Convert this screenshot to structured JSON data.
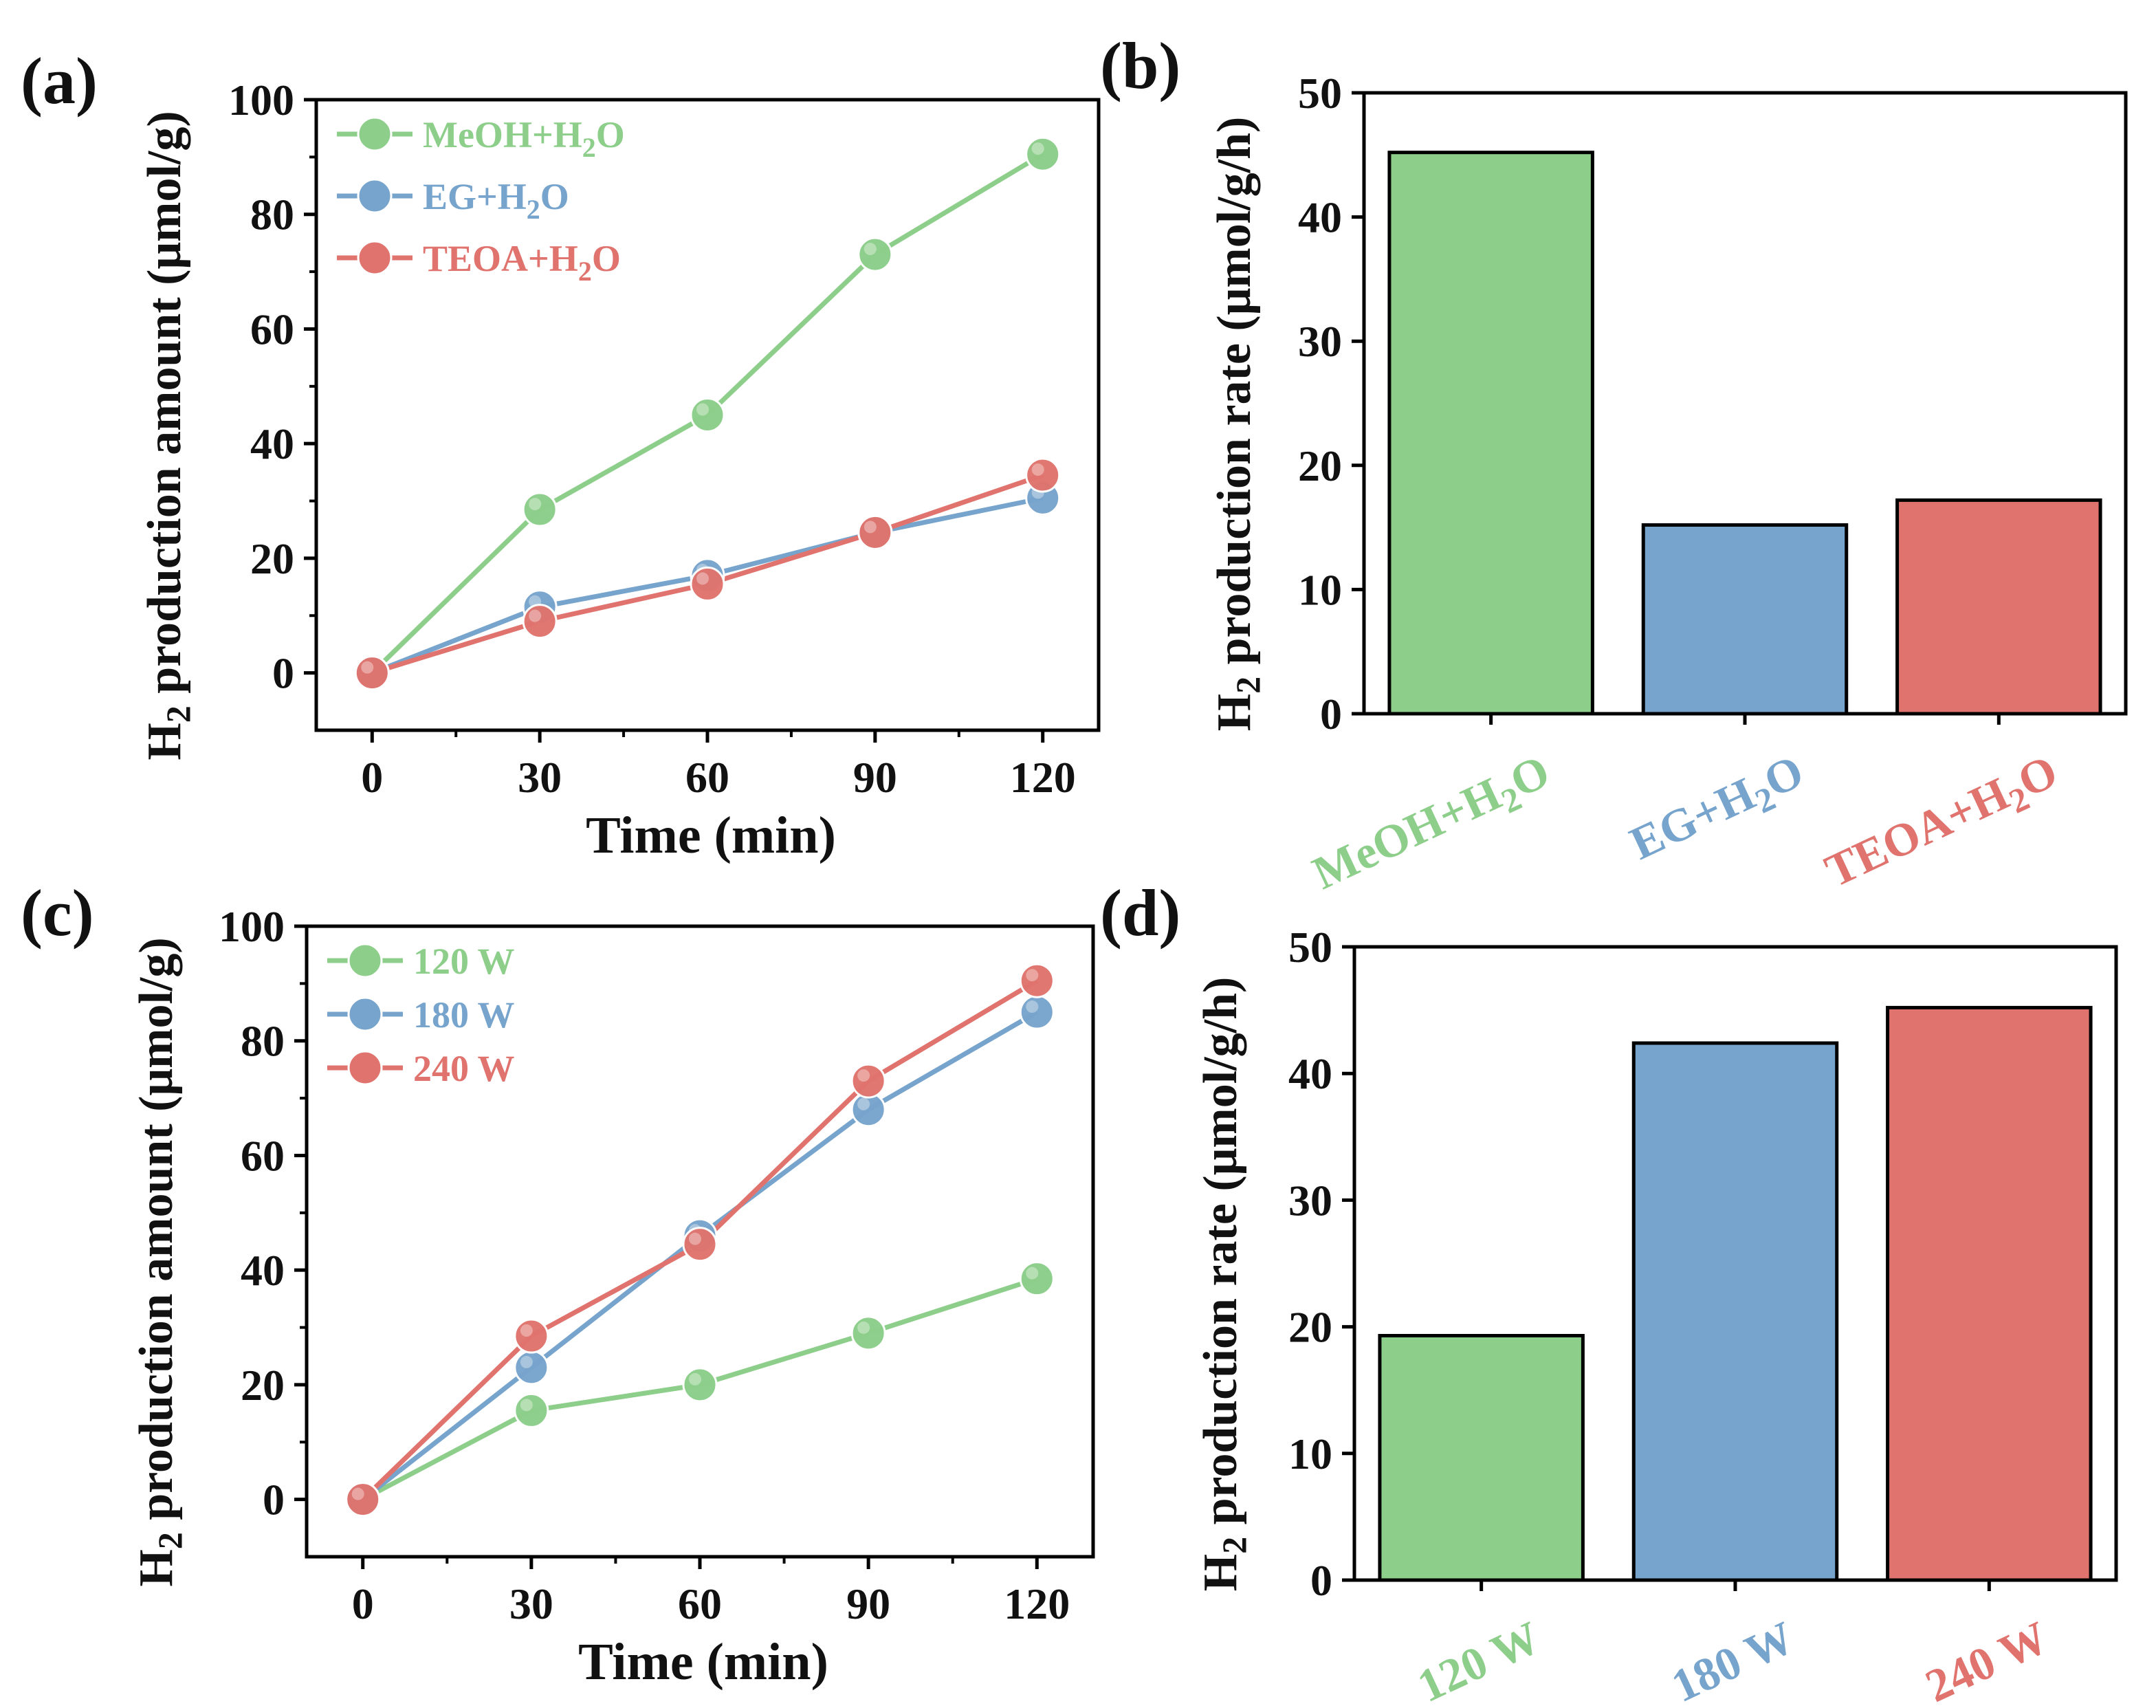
{
  "colors": {
    "green": "#8cce8a",
    "blue": "#77a4cc",
    "red": "#e0736d",
    "axis": "#000000"
  },
  "chart_data": [
    {
      "id": "a",
      "panel_label": "(a)",
      "type": "line",
      "x": [
        0,
        30,
        60,
        90,
        120
      ],
      "xticks": [
        "0",
        "30",
        "60",
        "90",
        "120"
      ],
      "xlim": [
        -10,
        130
      ],
      "ylim": [
        -10,
        100
      ],
      "yticks": [
        "0",
        "20",
        "40",
        "60",
        "80",
        "100"
      ],
      "xlabel": "Time (min)",
      "ylabel": {
        "main": "H",
        "sub": "2",
        "rest": " production amount (μmol/g)"
      },
      "series": [
        {
          "name": "MeOH+H2O",
          "legend": {
            "main": "MeOH+H",
            "sub": "2",
            "rest": "O"
          },
          "color": "green",
          "values": [
            0,
            28.5,
            45,
            73,
            90.5
          ]
        },
        {
          "name": "EG+H2O",
          "legend": {
            "main": "EG+H",
            "sub": "2",
            "rest": "O"
          },
          "color": "blue",
          "values": [
            0,
            11.5,
            17,
            24.5,
            30.5
          ]
        },
        {
          "name": "TEOA+H2O",
          "legend": {
            "main": "TEOA+H",
            "sub": "2",
            "rest": "O"
          },
          "color": "red",
          "values": [
            0,
            9,
            15.5,
            24.5,
            34.5
          ]
        }
      ]
    },
    {
      "id": "b",
      "panel_label": "(b)",
      "type": "bar",
      "categories": [
        {
          "main": "MeOH+H",
          "sub": "2",
          "rest": "O",
          "color": "green"
        },
        {
          "main": "EG+H",
          "sub": "2",
          "rest": "O",
          "color": "blue"
        },
        {
          "main": "TEOA+H",
          "sub": "2",
          "rest": "O",
          "color": "red"
        }
      ],
      "values": [
        45.2,
        15.2,
        17.2
      ],
      "ylim": [
        0,
        50
      ],
      "yticks": [
        "0",
        "10",
        "20",
        "30",
        "40",
        "50"
      ],
      "ylabel": {
        "main": "H",
        "sub": "2",
        "rest": " production rate (μmol/g/h)"
      }
    },
    {
      "id": "c",
      "panel_label": "(c)",
      "type": "line",
      "x": [
        0,
        30,
        60,
        90,
        120
      ],
      "xticks": [
        "0",
        "30",
        "60",
        "90",
        "120"
      ],
      "xlim": [
        -10,
        130
      ],
      "ylim": [
        -10,
        100
      ],
      "yticks": [
        "0",
        "20",
        "40",
        "60",
        "80",
        "100"
      ],
      "xlabel": "Time (min)",
      "ylabel": {
        "main": "H",
        "sub": "2",
        "rest": " production amount (μmol/g)"
      },
      "series": [
        {
          "name": "120 W",
          "legend": {
            "main": "120 W",
            "sub": "",
            "rest": ""
          },
          "color": "green",
          "values": [
            0,
            15.5,
            20,
            29,
            38.5
          ]
        },
        {
          "name": "180 W",
          "legend": {
            "main": "180 W",
            "sub": "",
            "rest": ""
          },
          "color": "blue",
          "values": [
            0,
            23,
            46,
            68,
            85
          ]
        },
        {
          "name": "240 W",
          "legend": {
            "main": "240 W",
            "sub": "",
            "rest": ""
          },
          "color": "red",
          "values": [
            0,
            28.5,
            44.5,
            73,
            90.5
          ]
        }
      ]
    },
    {
      "id": "d",
      "panel_label": "(d)",
      "type": "bar",
      "categories": [
        {
          "main": "120 W",
          "sub": "",
          "rest": "",
          "color": "green"
        },
        {
          "main": "180 W",
          "sub": "",
          "rest": "",
          "color": "blue"
        },
        {
          "main": "240 W",
          "sub": "",
          "rest": "",
          "color": "red"
        }
      ],
      "values": [
        19.3,
        42.4,
        45.2
      ],
      "ylim": [
        0,
        50
      ],
      "yticks": [
        "0",
        "10",
        "20",
        "30",
        "40",
        "50"
      ],
      "ylabel": {
        "main": "H",
        "sub": "2",
        "rest": " production rate (μmol/g/h)"
      }
    }
  ]
}
